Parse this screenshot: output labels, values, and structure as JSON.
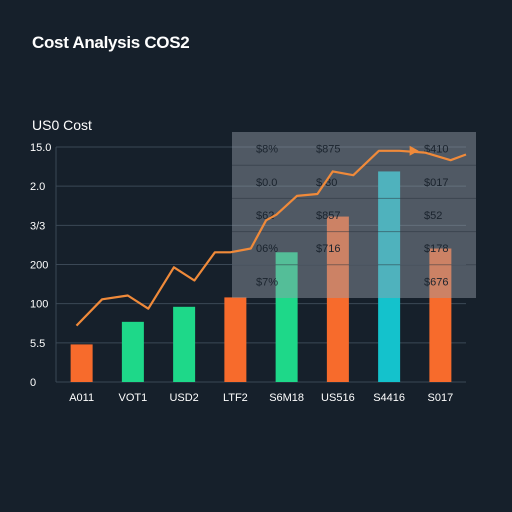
{
  "chart_data": {
    "type": "bar",
    "title": "Cost Analysis COS2",
    "xlabel": "",
    "ylabel": "US0 Cost",
    "y_tick_labels": [
      "15.0",
      "2.0",
      "3/3",
      "200",
      "100",
      "5.5",
      "0"
    ],
    "categories": [
      "A011",
      "VOT1",
      "USD2",
      "LTF2",
      "S6M18",
      "US516",
      "S4416",
      "S017"
    ],
    "bar_colors": [
      "#f76b2c",
      "#1ed889",
      "#1ed889",
      "#f76b2c",
      "#1ed889",
      "#f76b2c",
      "#14c2cc",
      "#f76b2c"
    ],
    "series": [
      {
        "type": "bar",
        "values": [
          2.0,
          3.2,
          4.0,
          4.5,
          6.9,
          8.8,
          11.2,
          7.1
        ]
      },
      {
        "type": "line",
        "color": "#f08a3a",
        "x": [
          -0.1,
          0.4,
          0.9,
          1.3,
          1.8,
          2.2,
          2.6,
          2.9,
          3.3,
          3.6,
          3.8,
          4.2,
          4.6,
          4.9,
          5.3,
          5.8,
          6.2,
          6.7,
          7.2,
          7.5
        ],
        "values": [
          3.0,
          4.4,
          4.6,
          3.9,
          6.1,
          5.4,
          6.9,
          6.9,
          7.1,
          8.6,
          8.9,
          9.9,
          10.0,
          11.2,
          11.0,
          12.3,
          12.3,
          12.2,
          11.8,
          12.1
        ]
      }
    ],
    "ylim": [
      0,
      12.5
    ],
    "grid": true,
    "table_overlay": {
      "rows": [
        [
          "$8%",
          "$875",
          "$410"
        ],
        [
          "$0.0",
          "$.30",
          "$017"
        ],
        [
          "$62",
          "$857",
          "$52"
        ],
        [
          "06%",
          "$716",
          "$178"
        ],
        [
          "$7%",
          "",
          "$676"
        ]
      ]
    }
  }
}
